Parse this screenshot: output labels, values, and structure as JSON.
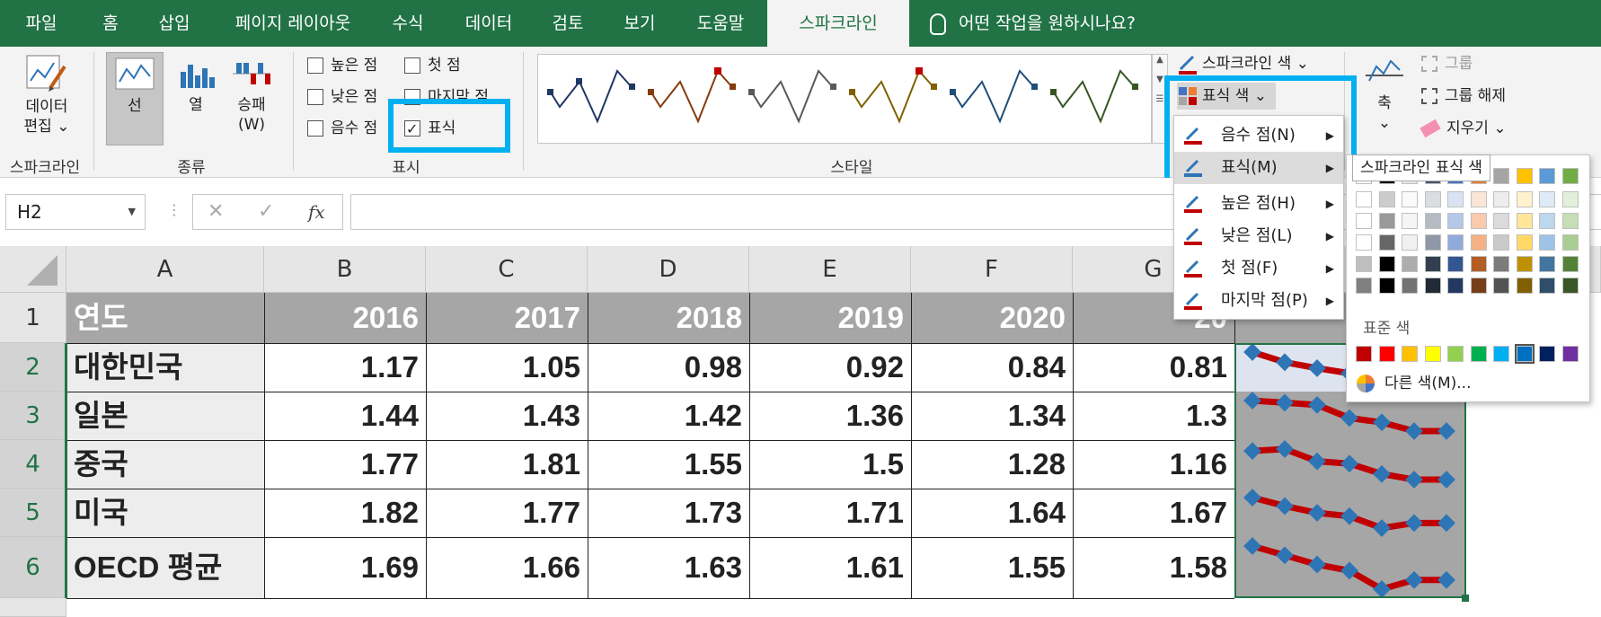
{
  "tabs": [
    {
      "label": "파일",
      "active": false
    },
    {
      "label": "홈",
      "active": false
    },
    {
      "label": "삽입",
      "active": false
    },
    {
      "label": "페이지 레이아웃",
      "active": false
    },
    {
      "label": "수식",
      "active": false
    },
    {
      "label": "데이터",
      "active": false
    },
    {
      "label": "검토",
      "active": false
    },
    {
      "label": "보기",
      "active": false
    },
    {
      "label": "도움말",
      "active": false
    },
    {
      "label": "스파크라인",
      "active": true
    }
  ],
  "tell_me": "어떤 작업을 원하시나요?",
  "ribbon": {
    "sparkline_group": {
      "edit_data_line1": "데이터",
      "edit_data_line2": "편집 ⌄",
      "label": "스파크라인"
    },
    "type_group": {
      "line": "선",
      "column": "열",
      "winloss_line1": "승패",
      "winloss_line2": "(W)",
      "label": "종류"
    },
    "show_group": {
      "high_point": "높은 점",
      "low_point": "낮은 점",
      "negative_point": "음수 점",
      "first_point": "첫 점",
      "last_point": "마지막 점",
      "markers": "표식",
      "markers_checked": true,
      "label": "표시"
    },
    "style_group": {
      "label": "스타일",
      "sparkline_color": "스파크라인 색 ⌄",
      "marker_color": "표식 색 ⌄"
    },
    "group_group": {
      "axis_line1": "축",
      "axis_line2": "⌄",
      "group": "그룹",
      "ungroup": "그룹 해제",
      "clear": "지우기 ⌄"
    }
  },
  "formula_bar": {
    "name_box": "H2",
    "fx": "fx",
    "value": ""
  },
  "columns": [
    "A",
    "B",
    "C",
    "D",
    "E",
    "F",
    "G"
  ],
  "rows": [
    "1",
    "2",
    "3",
    "4",
    "5",
    "6"
  ],
  "table": {
    "header": [
      "연도",
      "2016",
      "2017",
      "2018",
      "2019",
      "2020",
      "20"
    ],
    "data": [
      {
        "name": "대한민국",
        "values": [
          "1.17",
          "1.05",
          "0.98",
          "0.92",
          "0.84",
          "0.81"
        ]
      },
      {
        "name": "일본",
        "values": [
          "1.44",
          "1.43",
          "1.42",
          "1.36",
          "1.34",
          "1.3"
        ]
      },
      {
        "name": "중국",
        "values": [
          "1.77",
          "1.81",
          "1.55",
          "1.5",
          "1.28",
          "1.16"
        ]
      },
      {
        "name": "미국",
        "values": [
          "1.82",
          "1.77",
          "1.73",
          "1.71",
          "1.64",
          "1.67"
        ]
      },
      {
        "name": "OECD 평균",
        "values": [
          "1.69",
          "1.66",
          "1.63",
          "1.61",
          "1.55",
          "1.58"
        ]
      }
    ]
  },
  "marker_menu": {
    "items": [
      {
        "label": "음수 점(N)",
        "hover": false
      },
      {
        "label": "표식(M)",
        "hover": true
      },
      {
        "label": "높은 점(H)",
        "hover": false
      },
      {
        "label": "낮은 점(L)",
        "hover": false
      },
      {
        "label": "첫 점(F)",
        "hover": false
      },
      {
        "label": "마지막 점(P)",
        "hover": false
      }
    ]
  },
  "color_panel": {
    "tooltip": "스파크라인 표식 색",
    "standard_label": "표준 색",
    "more_colors": "다른 색(M)...",
    "theme_colors": [
      "#ffffff",
      "#000000",
      "#e7e6e6",
      "#44546a",
      "#4472c4",
      "#ed7d31",
      "#a5a5a5",
      "#ffc000",
      "#5b9bd5",
      "#70ad47"
    ],
    "standard_colors": [
      "#c00000",
      "#ff0000",
      "#ffc000",
      "#ffff00",
      "#92d050",
      "#00b050",
      "#00b0f0",
      "#0070c0",
      "#002060",
      "#7030a0"
    ]
  },
  "colors": {
    "excel_green": "#217346",
    "highlight": "#00b0f0",
    "sparkline_line": "#c00000",
    "sparkline_marker": "#2e75b6"
  }
}
